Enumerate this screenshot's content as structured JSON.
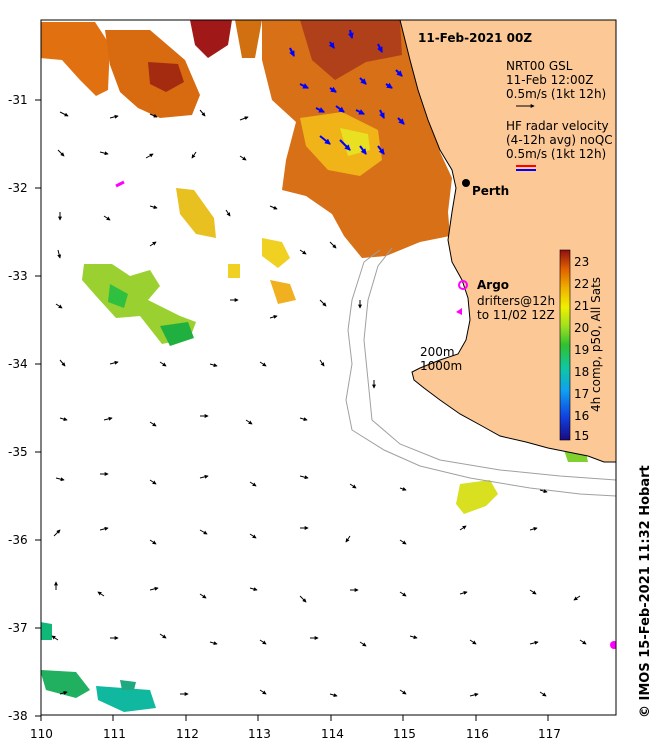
{
  "title": "11-Feb-2021 00Z",
  "city": "Perth",
  "legend_nrt": {
    "line1": "NRT00 GSL",
    "line2": "11-Feb 12:00Z",
    "line3": "0.5m/s (1kt 12h)"
  },
  "legend_hf": {
    "line1": "HF radar velocity",
    "line2": "(4-12h avg) noQC",
    "line3": "0.5m/s (1kt 12h)"
  },
  "legend_argo": {
    "label": "Argo",
    "line1": "drifters@12h",
    "line2": "to 11/02 12Z"
  },
  "isobaths": {
    "line1": "200m",
    "line2": "1000m"
  },
  "colorbar": {
    "label": "4h comp, p50, All Sats",
    "ticks": [
      "15",
      "16",
      "17",
      "18",
      "19",
      "20",
      "21",
      "22",
      "23"
    ],
    "min": 14.8,
    "max": 23.5
  },
  "credit": "© IMOS 15-Feb-2021 11:32 Hobart",
  "axes": {
    "x_ticks": [
      "110",
      "111",
      "112",
      "113",
      "114",
      "115",
      "116",
      "117"
    ],
    "y_ticks": [
      "-31",
      "-32",
      "-33",
      "-34",
      "-35",
      "-36",
      "-37",
      "-38"
    ],
    "xlim": [
      110,
      117.9
    ],
    "ylim": [
      -38,
      -30.2
    ]
  },
  "colors": {
    "land": "#fcc896",
    "coast": "#000000",
    "isobath": "#a0a0a0",
    "hf_red": "#ff0000",
    "hf_blue": "#0000ff",
    "argo_magenta": "#ff00ff"
  }
}
